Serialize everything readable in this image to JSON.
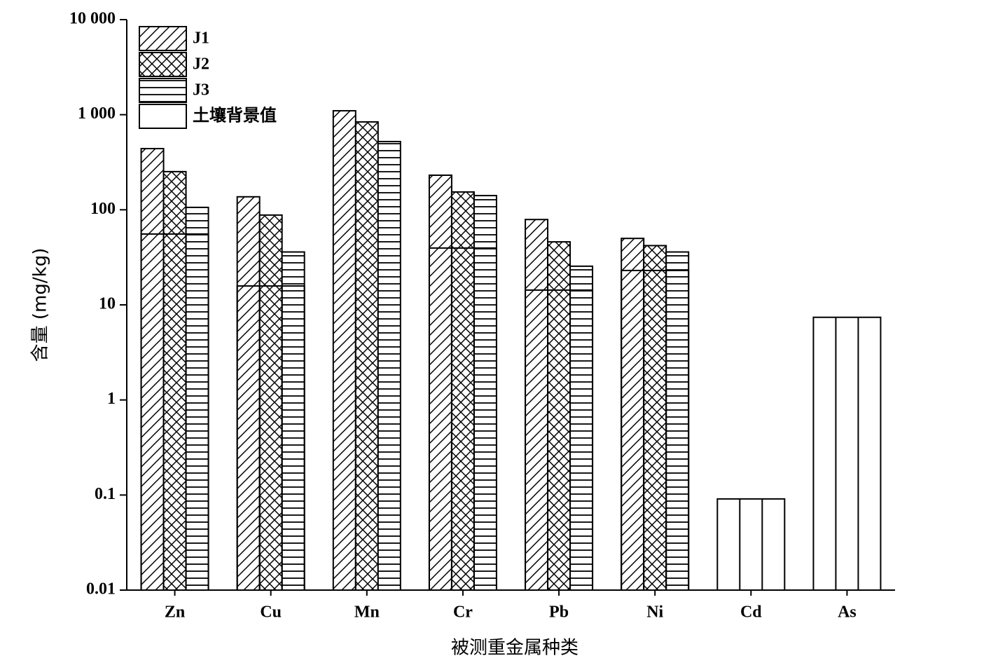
{
  "chart_data": {
    "type": "bar",
    "x_label": "被测重金属种类",
    "y_label": "含量 (mg/kg)",
    "categories": [
      "Zn",
      "Cu",
      "Mn",
      "Cr",
      "Pb",
      "Ni",
      "Cd",
      "As"
    ],
    "series": [
      {
        "name": "J1",
        "color": "#000000",
        "pattern": "diagonal",
        "values": [
          440,
          137,
          1100,
          231,
          79,
          50,
          null,
          null
        ]
      },
      {
        "name": "J2",
        "color": "#000000",
        "pattern": "crosshatch",
        "values": [
          252,
          88,
          840,
          154,
          46,
          42,
          null,
          null
        ]
      },
      {
        "name": "J3",
        "color": "#000000",
        "pattern": "horizontal",
        "values": [
          106,
          36,
          522,
          141,
          25.5,
          36,
          null,
          null
        ]
      },
      {
        "name": "土壤背景值",
        "color": "#000000",
        "pattern": "none",
        "overlay": true,
        "values": [
          55.6,
          15.8,
          null,
          39.6,
          14.3,
          23,
          0.091,
          7.4
        ]
      }
    ],
    "log_y": true,
    "ylim": [
      0.01,
      10000
    ],
    "yticks": [
      0.01,
      0.1,
      1,
      10,
      100,
      {
        "value": 1000,
        "label": "1 000"
      },
      {
        "value": 10000,
        "label": "10 000"
      }
    ],
    "legend": "upper left"
  }
}
